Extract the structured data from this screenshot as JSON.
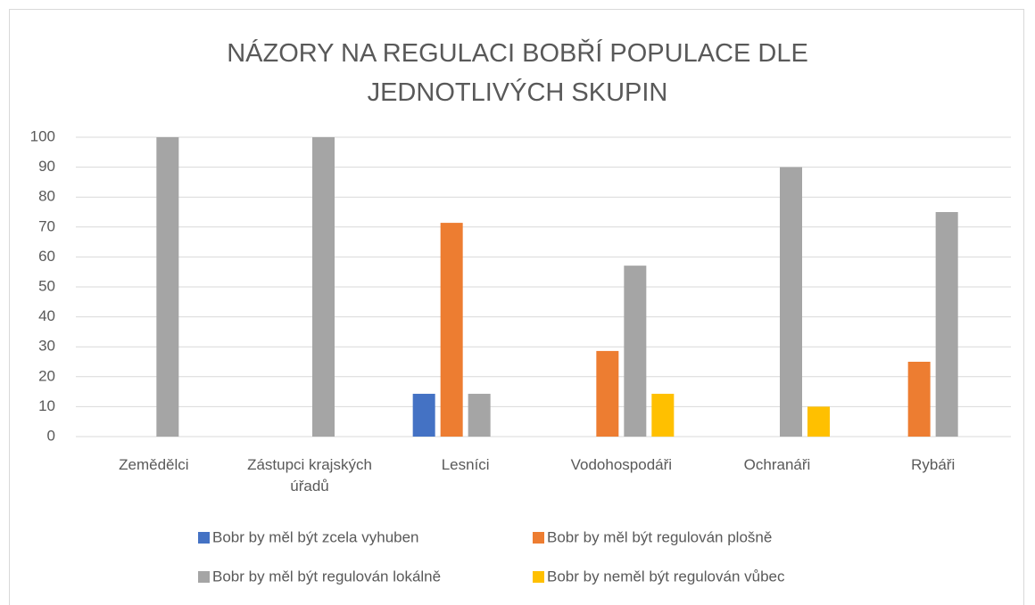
{
  "chart_data": {
    "type": "bar",
    "title": "NÁZORY NA REGULACI BOBŘÍ POPULACE DLE JEDNOTLIVÝCH SKUPIN",
    "categories": [
      "Zemědělci",
      "Zástupci krajských úřadů",
      "Lesníci",
      "Vodohospodáři",
      "Ochranáři",
      "Rybáři"
    ],
    "series": [
      {
        "name": "Bobr by měl být zcela vyhuben",
        "color": "#4472c4",
        "values": [
          0,
          0,
          14.3,
          0,
          0,
          0
        ]
      },
      {
        "name": "Bobr by měl být regulován plošně",
        "color": "#ed7d31",
        "values": [
          0,
          0,
          71.4,
          28.6,
          0,
          25
        ]
      },
      {
        "name": "Bobr by měl být regulován lokálně",
        "color": "#a5a5a5",
        "values": [
          100,
          100,
          14.3,
          57.1,
          90,
          75
        ]
      },
      {
        "name": "Bobr by neměl být regulován vůbec",
        "color": "#ffc000",
        "values": [
          0,
          0,
          0,
          14.3,
          10,
          0
        ]
      }
    ],
    "ylim": [
      0,
      100
    ],
    "yticks": [
      0,
      10,
      20,
      30,
      40,
      50,
      60,
      70,
      80,
      90,
      100
    ],
    "grid": true,
    "legend": "bottom"
  }
}
